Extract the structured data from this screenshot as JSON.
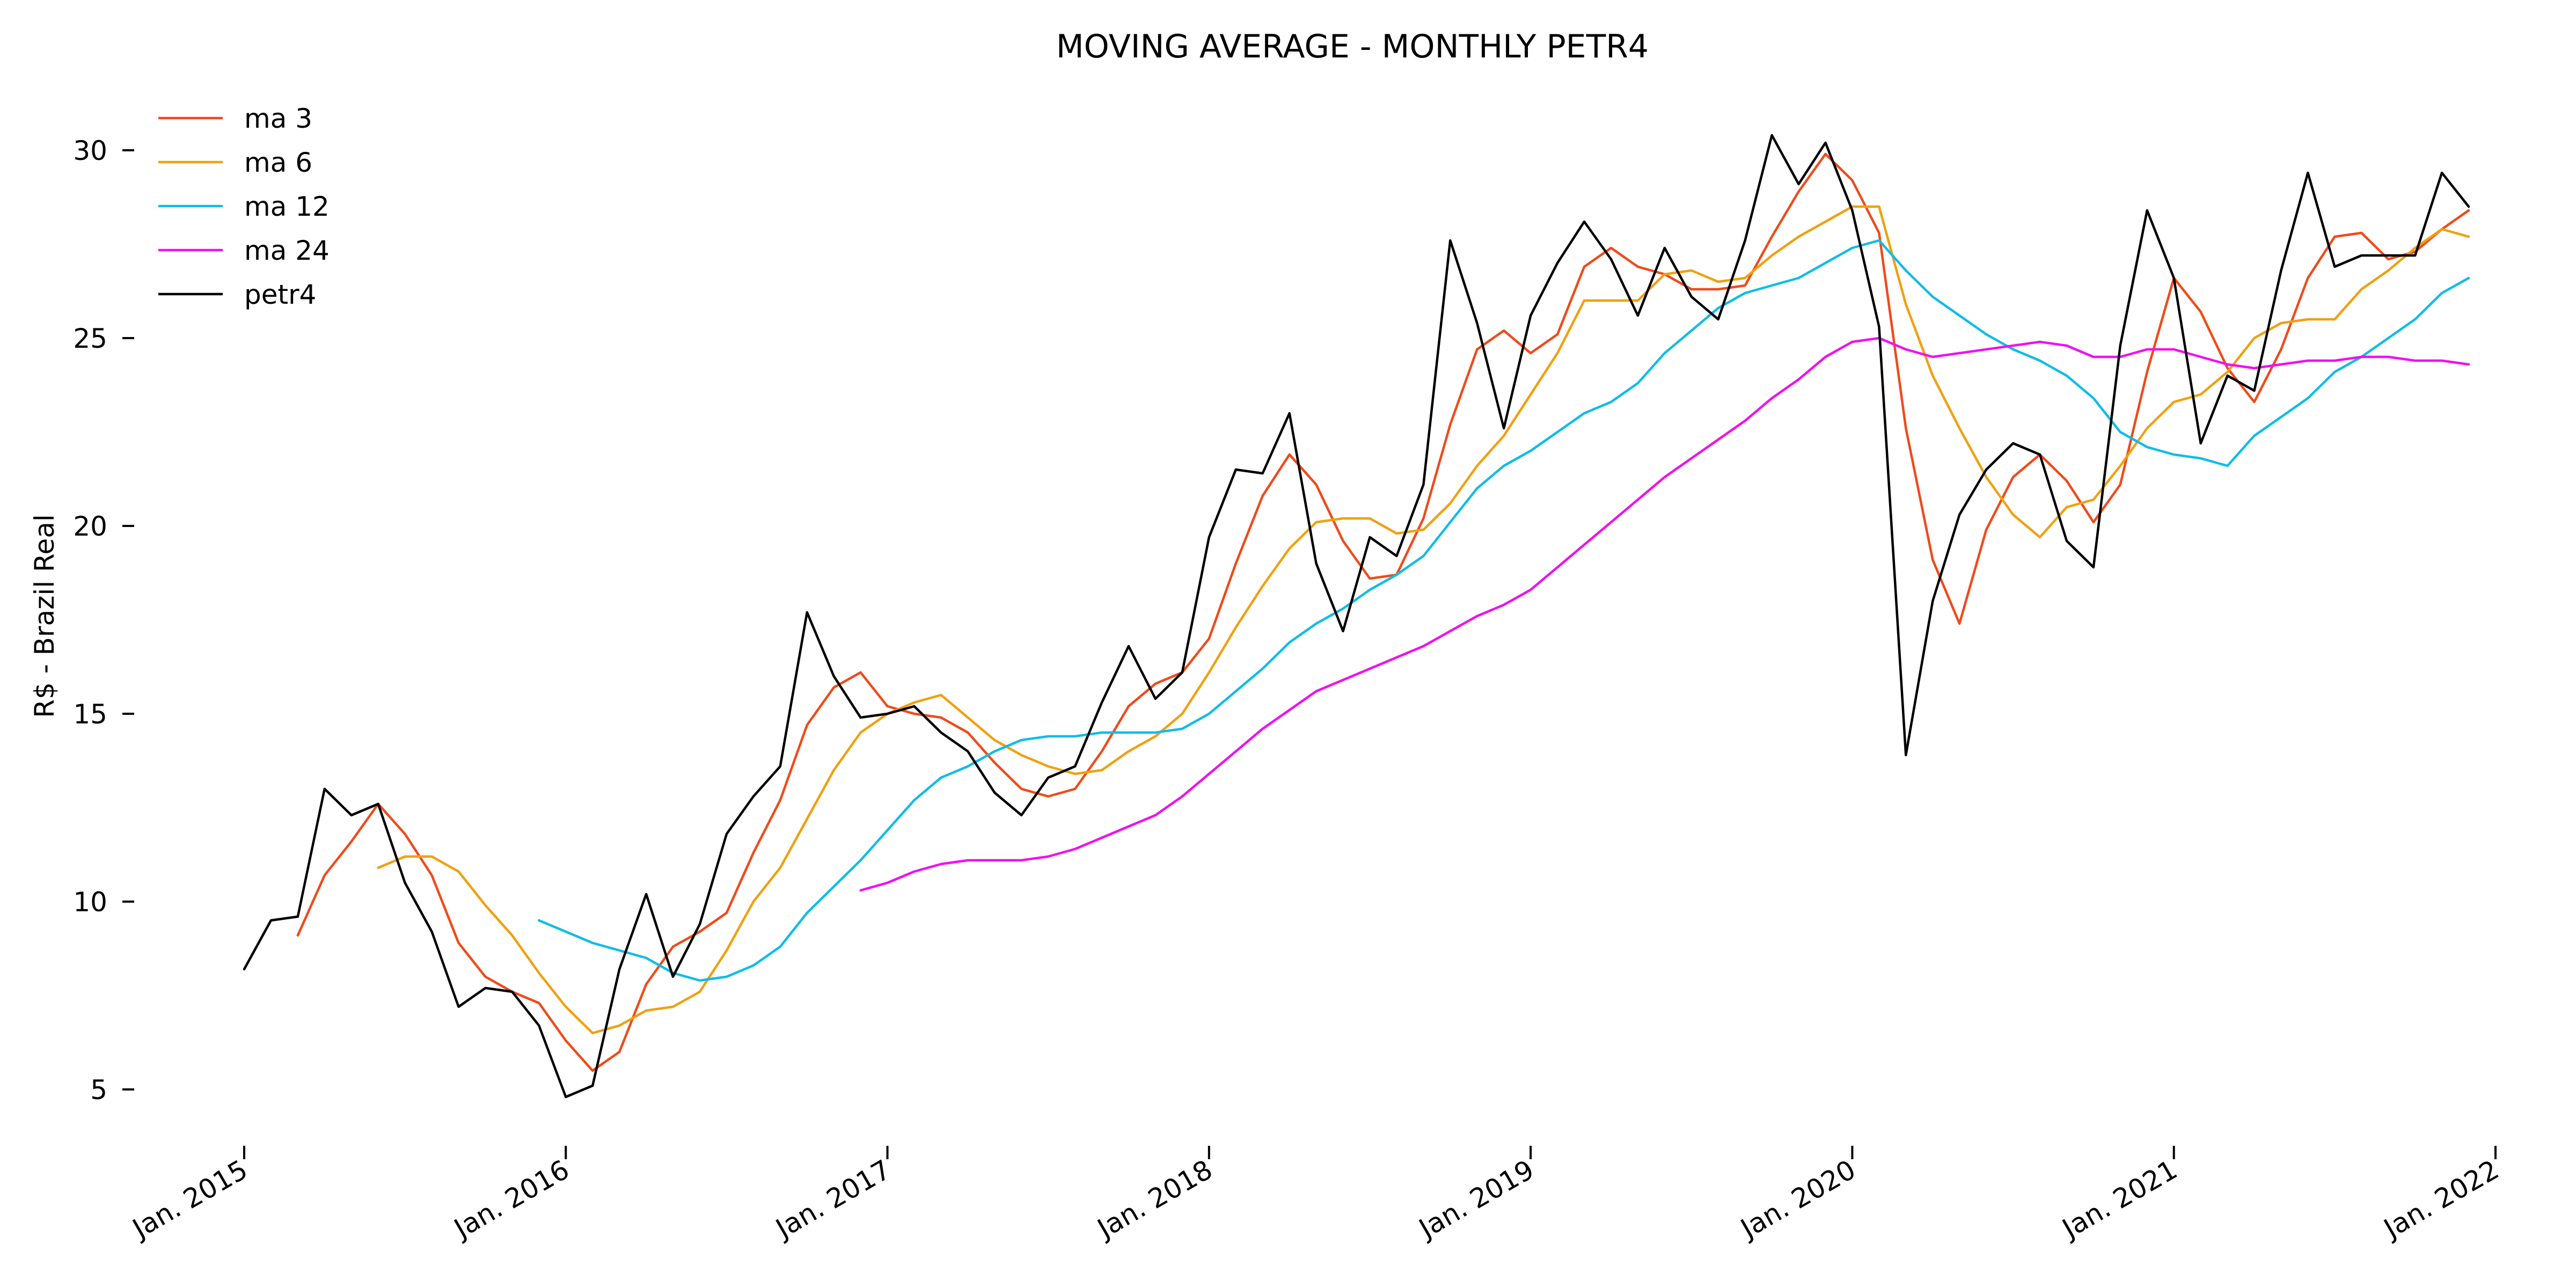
{
  "chart_data": {
    "type": "line",
    "title": "MOVING AVERAGE - MONTHLY PETR4",
    "xlabel": "",
    "ylabel": "R$ - Brazil Real",
    "x_start": "2015-01",
    "x_frequency": "monthly",
    "xlim": [
      "2015-01",
      "2022-01"
    ],
    "xticks": [
      {
        "date": "2015-01",
        "label": "Jan. 2015"
      },
      {
        "date": "2016-01",
        "label": "Jan. 2016"
      },
      {
        "date": "2017-01",
        "label": "Jan. 2017"
      },
      {
        "date": "2018-01",
        "label": "Jan. 2018"
      },
      {
        "date": "2019-01",
        "label": "Jan. 2019"
      },
      {
        "date": "2020-01",
        "label": "Jan. 2020"
      },
      {
        "date": "2021-01",
        "label": "Jan. 2021"
      },
      {
        "date": "2022-01",
        "label": "Jan. 2022"
      }
    ],
    "ylim": [
      4,
      31
    ],
    "yticks": [
      5,
      10,
      15,
      20,
      25,
      30
    ],
    "grid": false,
    "legend_position": "top-left",
    "series": [
      {
        "name": "ma 3",
        "color": "#f04a1a",
        "values": [
          null,
          null,
          9.1,
          10.7,
          11.6,
          12.6,
          11.8,
          10.7,
          8.9,
          8.0,
          7.6,
          7.3,
          6.3,
          5.5,
          6.0,
          7.8,
          8.8,
          9.2,
          9.7,
          11.3,
          12.7,
          14.7,
          15.7,
          16.1,
          15.2,
          15.0,
          14.9,
          14.5,
          13.7,
          13.0,
          12.8,
          13.0,
          14.0,
          15.2,
          15.8,
          16.1,
          17.0,
          19.0,
          20.8,
          21.9,
          21.1,
          19.6,
          18.6,
          18.7,
          20.2,
          22.7,
          24.7,
          25.2,
          24.6,
          25.1,
          26.9,
          27.4,
          26.9,
          26.7,
          26.3,
          26.3,
          26.4,
          27.7,
          28.9,
          29.9,
          29.2,
          27.8,
          22.6,
          19.1,
          17.4,
          19.9,
          21.3,
          21.9,
          21.2,
          20.1,
          21.1,
          24.1,
          26.6,
          25.7,
          24.2,
          23.3,
          24.7,
          26.6,
          27.7,
          27.8,
          27.1,
          27.3,
          27.9,
          28.4
        ]
      },
      {
        "name": "ma 6",
        "color": "#f0a010",
        "values": [
          null,
          null,
          null,
          null,
          null,
          10.9,
          11.2,
          11.2,
          10.8,
          9.9,
          9.1,
          8.1,
          7.2,
          6.5,
          6.7,
          7.1,
          7.2,
          7.6,
          8.7,
          10.0,
          10.9,
          12.2,
          13.5,
          14.5,
          15.0,
          15.3,
          15.5,
          14.9,
          14.3,
          13.9,
          13.6,
          13.4,
          13.5,
          14.0,
          14.4,
          15.0,
          16.1,
          17.3,
          18.4,
          19.4,
          20.1,
          20.2,
          20.2,
          19.8,
          19.9,
          20.6,
          21.6,
          22.4,
          23.5,
          24.6,
          26.0,
          26.0,
          26.0,
          26.7,
          26.8,
          26.5,
          26.6,
          27.2,
          27.7,
          28.1,
          28.5,
          28.5,
          25.9,
          24.0,
          22.6,
          21.3,
          20.3,
          19.7,
          20.5,
          20.7,
          21.6,
          22.6,
          23.3,
          23.5,
          24.1,
          25.0,
          25.4,
          25.5,
          25.5,
          26.3,
          26.8,
          27.4,
          27.9,
          27.7
        ]
      },
      {
        "name": "ma 12",
        "color": "#10bce8",
        "values": [
          null,
          null,
          null,
          null,
          null,
          null,
          null,
          null,
          null,
          null,
          null,
          9.5,
          9.2,
          8.9,
          8.7,
          8.5,
          8.1,
          7.9,
          8.0,
          8.3,
          8.8,
          9.7,
          10.4,
          11.1,
          11.9,
          12.7,
          13.3,
          13.6,
          14.0,
          14.3,
          14.4,
          14.4,
          14.5,
          14.5,
          14.5,
          14.6,
          15.0,
          15.6,
          16.2,
          16.9,
          17.4,
          17.8,
          18.3,
          18.7,
          19.2,
          20.1,
          21.0,
          21.6,
          22.0,
          22.5,
          23.0,
          23.3,
          23.8,
          24.6,
          25.2,
          25.8,
          26.2,
          26.4,
          26.6,
          27.0,
          27.4,
          27.6,
          26.8,
          26.1,
          25.6,
          25.1,
          24.7,
          24.4,
          24.0,
          23.4,
          22.5,
          22.1,
          21.9,
          21.8,
          21.6,
          22.4,
          22.9,
          23.4,
          24.1,
          24.5,
          25.0,
          25.5,
          26.2,
          26.6
        ]
      },
      {
        "name": "ma 24",
        "color": "#f010f0",
        "values": [
          null,
          null,
          null,
          null,
          null,
          null,
          null,
          null,
          null,
          null,
          null,
          null,
          null,
          null,
          null,
          null,
          null,
          null,
          null,
          null,
          null,
          null,
          null,
          10.3,
          10.5,
          10.8,
          11.0,
          11.1,
          11.1,
          11.1,
          11.2,
          11.4,
          11.7,
          12.0,
          12.3,
          12.8,
          13.4,
          14.0,
          14.6,
          15.1,
          15.6,
          15.9,
          16.2,
          16.5,
          16.8,
          17.2,
          17.6,
          17.9,
          18.3,
          18.9,
          19.5,
          20.1,
          20.7,
          21.3,
          21.8,
          22.3,
          22.8,
          23.4,
          23.9,
          24.5,
          24.9,
          25.0,
          24.7,
          24.5,
          24.6,
          24.7,
          24.8,
          24.9,
          24.8,
          24.5,
          24.5,
          24.7,
          24.7,
          24.5,
          24.3,
          24.2,
          24.3,
          24.4,
          24.4,
          24.5,
          24.5,
          24.4,
          24.4,
          24.3
        ]
      },
      {
        "name": "petr4",
        "color": "#000000",
        "values": [
          8.2,
          9.5,
          9.6,
          13.0,
          12.3,
          12.6,
          10.5,
          9.2,
          7.2,
          7.7,
          7.6,
          6.7,
          4.8,
          5.1,
          8.2,
          10.2,
          8.0,
          9.4,
          11.8,
          12.8,
          13.6,
          17.7,
          16.0,
          14.9,
          15.0,
          15.2,
          14.5,
          14.0,
          12.9,
          12.3,
          13.3,
          13.6,
          15.3,
          16.8,
          15.4,
          16.1,
          19.7,
          21.5,
          21.4,
          23.0,
          19.0,
          17.2,
          19.7,
          19.2,
          21.1,
          27.6,
          25.4,
          22.6,
          25.6,
          27.0,
          28.1,
          27.1,
          25.6,
          27.4,
          26.1,
          25.5,
          27.6,
          30.4,
          29.1,
          30.2,
          28.4,
          25.3,
          13.9,
          18.0,
          20.3,
          21.5,
          22.2,
          21.9,
          19.6,
          18.9,
          24.8,
          28.4,
          26.6,
          22.2,
          24.0,
          23.6,
          26.8,
          29.4,
          26.9,
          27.2,
          27.2,
          27.2,
          29.4,
          28.5
        ]
      }
    ]
  }
}
